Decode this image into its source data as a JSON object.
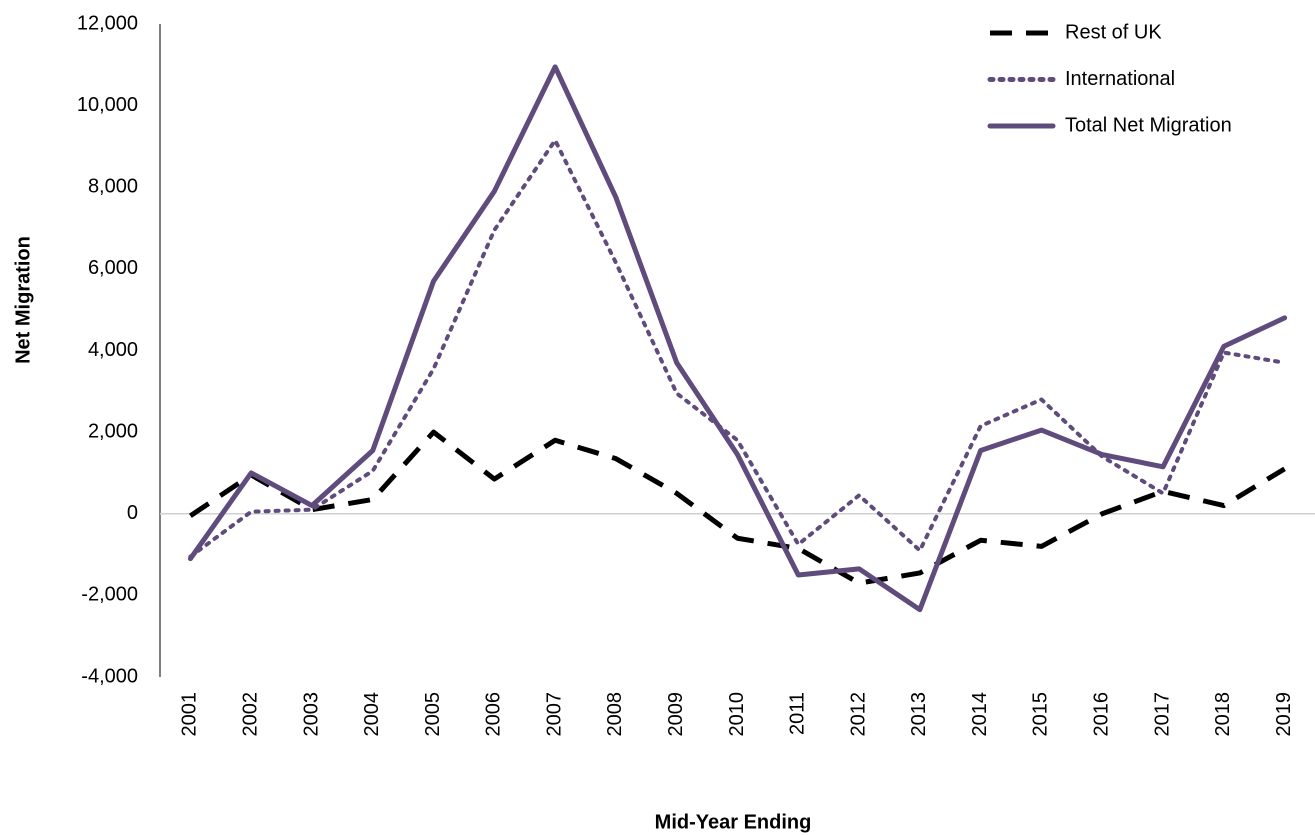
{
  "chart_data": {
    "type": "line",
    "x_label": "Mid-Year Ending",
    "y_label": "Net Migration",
    "categories": [
      "2001",
      "2002",
      "2003",
      "2004",
      "2005",
      "2006",
      "2007",
      "2008",
      "2009",
      "2010",
      "2011",
      "2012",
      "2013",
      "2014",
      "2015",
      "2016",
      "2017",
      "2018",
      "2019"
    ],
    "series": [
      {
        "name": "Rest of UK",
        "color": "#000000",
        "dash": "dashed",
        "values": [
          -50,
          950,
          100,
          350,
          2000,
          850,
          1800,
          1350,
          500,
          -600,
          -850,
          -1700,
          -1450,
          -650,
          -800,
          0,
          550,
          200,
          1100
        ]
      },
      {
        "name": "International",
        "color": "#5f4b7c",
        "dash": "dotted",
        "values": [
          -1050,
          50,
          100,
          1050,
          3550,
          6950,
          9150,
          6150,
          2950,
          1800,
          -750,
          450,
          -900,
          2150,
          2800,
          1400,
          500,
          3950,
          3700
        ]
      },
      {
        "name": "Total Net Migration",
        "color": "#5f4b7c",
        "dash": "solid",
        "values": [
          -1100,
          1000,
          200,
          1550,
          5700,
          7900,
          10950,
          7750,
          3700,
          1450,
          -1500,
          -1350,
          -2350,
          1550,
          2050,
          1450,
          1150,
          4100,
          4800
        ]
      }
    ],
    "ylim": [
      -4000,
      12000
    ],
    "yticks": [
      {
        "value": -4000,
        "label": "-4,000"
      },
      {
        "value": -2000,
        "label": "-2,000"
      },
      0,
      {
        "value": 2000,
        "label": "2,000"
      },
      {
        "value": 4000,
        "label": "4,000"
      },
      {
        "value": 6000,
        "label": "6,000"
      },
      {
        "value": 8000,
        "label": "8,000"
      },
      {
        "value": 10000,
        "label": "10,000"
      },
      {
        "value": 12000,
        "label": "12,000"
      }
    ],
    "legend": "upper right"
  }
}
